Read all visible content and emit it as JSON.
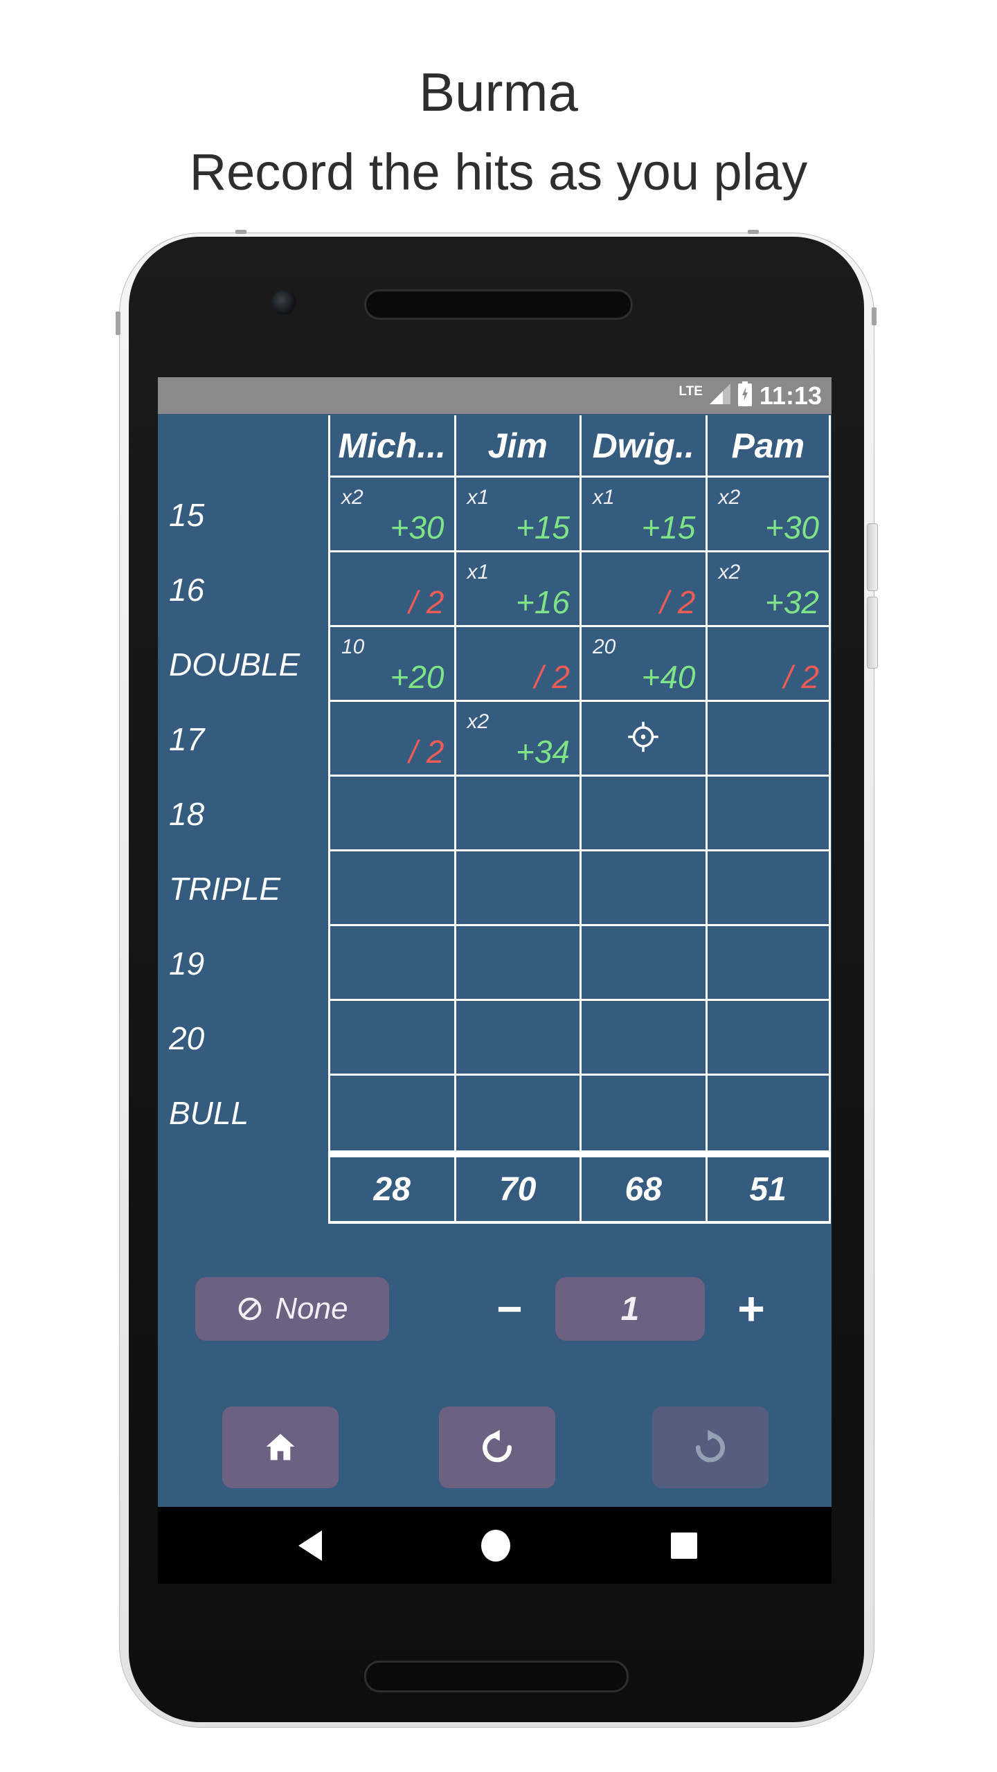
{
  "page": {
    "title": "Burma",
    "subtitle": "Record the hits as you play"
  },
  "status_bar": {
    "network_label": "LTE",
    "icons": [
      "signal-icon",
      "battery-charging-icon"
    ],
    "time": "11:13"
  },
  "scoreboard": {
    "players": [
      "Mich...",
      "Jim",
      "Dwig..",
      "Pam"
    ],
    "rows": [
      {
        "label": "15",
        "cells": [
          {
            "mult": "x2",
            "val": "+30",
            "type": "gain"
          },
          {
            "mult": "x1",
            "val": "+15",
            "type": "gain"
          },
          {
            "mult": "x1",
            "val": "+15",
            "type": "gain"
          },
          {
            "mult": "x2",
            "val": "+30",
            "type": "gain"
          }
        ]
      },
      {
        "label": "16",
        "cells": [
          {
            "val": "/ 2",
            "type": "miss"
          },
          {
            "mult": "x1",
            "val": "+16",
            "type": "gain"
          },
          {
            "val": "/ 2",
            "type": "miss"
          },
          {
            "mult": "x2",
            "val": "+32",
            "type": "gain"
          }
        ]
      },
      {
        "label": "DOUBLE",
        "cells": [
          {
            "mult": "10",
            "val": "+20",
            "type": "gain"
          },
          {
            "val": "/ 2",
            "type": "miss"
          },
          {
            "mult": "20",
            "val": "+40",
            "type": "gain"
          },
          {
            "val": "/ 2",
            "type": "miss"
          }
        ]
      },
      {
        "label": "17",
        "cells": [
          {
            "val": "/ 2",
            "type": "miss"
          },
          {
            "mult": "x2",
            "val": "+34",
            "type": "gain"
          },
          {
            "icon": "target-icon"
          },
          {}
        ]
      },
      {
        "label": "18",
        "cells": [
          {},
          {},
          {},
          {}
        ]
      },
      {
        "label": "TRIPLE",
        "cells": [
          {},
          {},
          {},
          {}
        ]
      },
      {
        "label": "19",
        "cells": [
          {},
          {},
          {},
          {}
        ]
      },
      {
        "label": "20",
        "cells": [
          {},
          {},
          {},
          {}
        ]
      },
      {
        "label": "BULL",
        "cells": [
          {},
          {},
          {},
          {}
        ]
      }
    ],
    "totals": [
      "28",
      "70",
      "68",
      "51"
    ]
  },
  "controls": {
    "none_label": "None",
    "none_icon": "no-multiplier-icon",
    "minus_label": "−",
    "multiplier_value": "1",
    "plus_label": "+"
  },
  "action_bar": {
    "home_icon": "home-icon",
    "undo_icon": "undo-icon",
    "redo_icon": "redo-icon",
    "redo_disabled": true
  },
  "nav_bar": {
    "back": "back-icon",
    "home": "home-circle-icon",
    "recents": "recents-square-icon"
  },
  "colors": {
    "app_background": "#355b7e",
    "status_bar": "#8a8a8a",
    "gain_green": "#7fe488",
    "miss_red": "#ee5d55",
    "button_purple": "#6d6181",
    "grid_line": "#ffffff"
  }
}
